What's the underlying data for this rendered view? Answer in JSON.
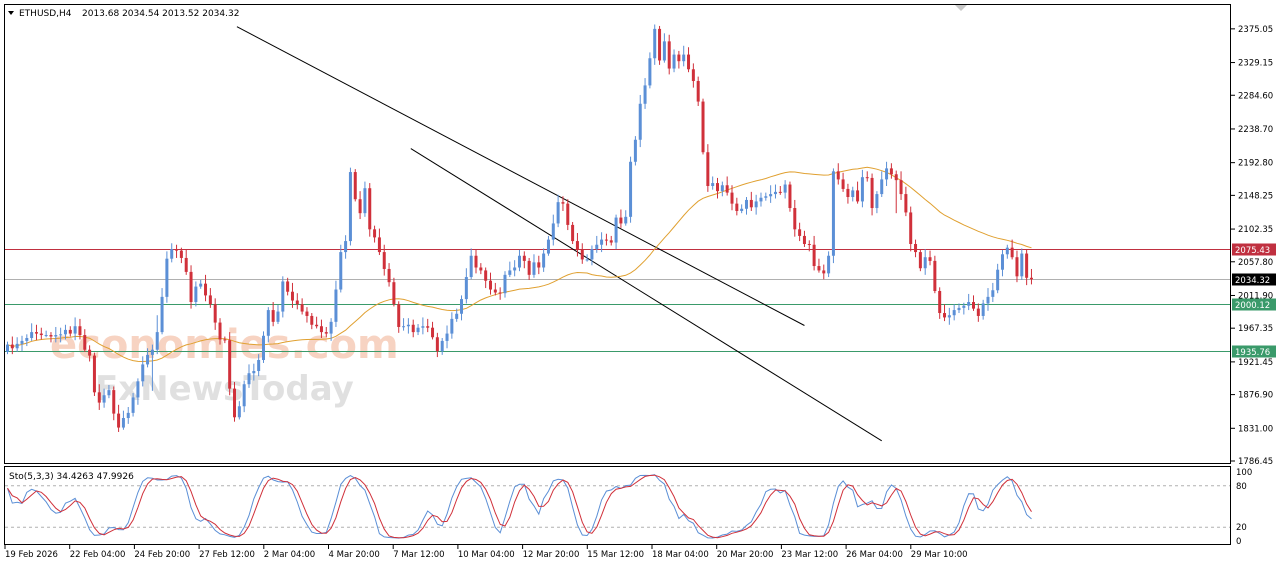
{
  "header": {
    "symbol": "ETHUSD,H4",
    "ohlc": "2013.68 2034.54 2013.52 2034.32"
  },
  "indicator": {
    "label": "Sto(5,3,3) 34.4263 47.9926",
    "levels": [
      100,
      80,
      20,
      0
    ]
  },
  "watermark": {
    "line1": "economies.com",
    "line2": "FxNewsToday"
  },
  "colors": {
    "background": "#ffffff",
    "bull": "#5b8fd6",
    "bear": "#d0303a",
    "ma": "#e0a030",
    "resistance": "#c03040",
    "support": "#3a9a6a",
    "price_line": "#b0b0b0",
    "stoch_main": "#d0303a",
    "stoch_signal": "#5b8fd6"
  },
  "chart_data": {
    "type": "candlestick",
    "timeframe": "H4",
    "ylim": [
      1786.45,
      2398
    ],
    "y_ticks": [
      2375.05,
      2329.15,
      2284.6,
      2238.7,
      2192.8,
      2148.25,
      2102.35,
      2057.8,
      2011.9,
      1967.35,
      1921.45,
      1876.9,
      1831.0,
      1786.45
    ],
    "x_ticks": [
      "19 Feb 2026",
      "22 Feb 04:00",
      "24 Feb 20:00",
      "27 Feb 12:00",
      "2 Mar 04:00",
      "4 Mar 20:00",
      "7 Mar 12:00",
      "10 Mar 04:00",
      "12 Mar 20:00",
      "15 Mar 12:00",
      "18 Mar 04:00",
      "20 Mar 20:00",
      "23 Mar 12:00",
      "26 Mar 04:00",
      "29 Mar 10:00"
    ],
    "horizontal_levels": [
      {
        "value": 2075.43,
        "label": "2075.43",
        "role": "resistance"
      },
      {
        "value": 2034.32,
        "label": "2034.32",
        "role": "current"
      },
      {
        "value": 2000.12,
        "label": "2000.12",
        "role": "support"
      },
      {
        "value": 1935.76,
        "label": "1935.76",
        "role": "support"
      }
    ],
    "trend_lines": [
      {
        "name": "upper-channel",
        "start": [
          47.5,
          2378
        ],
        "end": [
          165,
          1971
        ]
      },
      {
        "name": "lower-channel",
        "start": [
          83.5,
          2212
        ],
        "end": [
          181,
          1814
        ]
      }
    ],
    "close": [
      1945,
      1940,
      1946,
      1950,
      1954,
      1962,
      1960,
      1958,
      1958,
      1956,
      1958,
      1959,
      1965,
      1960,
      1970,
      1958,
      1938,
      1930,
      1880,
      1866,
      1876,
      1883,
      1851,
      1832,
      1845,
      1852,
      1873,
      1895,
      1918,
      1931,
      1938,
      1962,
      2010,
      2062,
      2075,
      2073,
      2063,
      2044,
      2003,
      2024,
      2028,
      2012,
      2000,
      1975,
      1952,
      1951,
      1885,
      1846,
      1861,
      1891,
      1906,
      1909,
      1924,
      1957,
      1992,
      1976,
      1990,
      2031,
      2017,
      2005,
      2000,
      1990,
      1984,
      1972,
      1970,
      1962,
      1960,
      1976,
      2020,
      2071,
      2086,
      2180,
      2143,
      2124,
      2158,
      2102,
      2091,
      2071,
      2048,
      2030,
      2000,
      1969,
      1970,
      1972,
      1962,
      1968,
      1970,
      1968,
      1955,
      1936,
      1950,
      1960,
      1980,
      1987,
      2007,
      2037,
      2066,
      2050,
      2046,
      2032,
      2020,
      2016,
      2015,
      2040,
      2046,
      2050,
      2066,
      2059,
      2040,
      2057,
      2050,
      2069,
      2088,
      2110,
      2139,
      2137,
      2108,
      2086,
      2074,
      2061,
      2061,
      2075,
      2081,
      2088,
      2087,
      2084,
      2118,
      2110,
      2119,
      2194,
      2224,
      2273,
      2298,
      2335,
      2375,
      2332,
      2358,
      2321,
      2340,
      2331,
      2340,
      2320,
      2304,
      2276,
      2207,
      2161,
      2165,
      2154,
      2162,
      2152,
      2137,
      2127,
      2130,
      2142,
      2132,
      2140,
      2145,
      2147,
      2150,
      2153,
      2152,
      2163,
      2131,
      2102,
      2093,
      2082,
      2081,
      2052,
      2046,
      2042,
      2066,
      2181,
      2170,
      2157,
      2146,
      2155,
      2140,
      2173,
      2172,
      2131,
      2150,
      2170,
      2185,
      2177,
      2169,
      2150,
      2125,
      2082,
      2071,
      2049,
      2064,
      2059,
      2018,
      1988,
      1982,
      1985,
      1992,
      1995,
      1998,
      2003,
      1994,
      1984,
      2001,
      2010,
      2019,
      2047,
      2068,
      2077,
      2064,
      2038,
      2069,
      2036,
      2034
    ]
  }
}
